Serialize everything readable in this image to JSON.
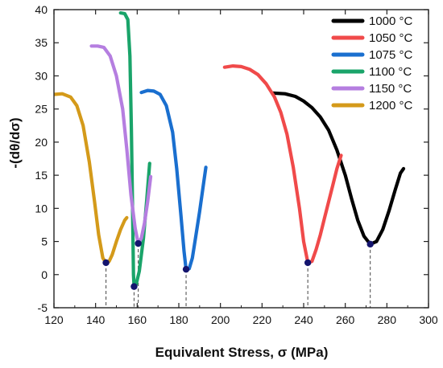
{
  "chart_data": {
    "type": "line",
    "xlabel": "Equivalent Stress, σ (MPa)",
    "ylabel": "-(dθ/dσ)",
    "xlim": [
      120,
      300
    ],
    "ylim": [
      -5,
      40
    ],
    "xticks": [
      120,
      140,
      160,
      180,
      200,
      220,
      240,
      260,
      280,
      300
    ],
    "yticks": [
      -5,
      0,
      5,
      10,
      15,
      20,
      25,
      30,
      35,
      40
    ],
    "legend_position": "top-right",
    "series": [
      {
        "name": "1000 °C",
        "color": "#000000",
        "points": [
          [
            225.5,
            27.4
          ],
          [
            231,
            27.3
          ],
          [
            236,
            26.9
          ],
          [
            240,
            26.2
          ],
          [
            244,
            25.2
          ],
          [
            248,
            23.8
          ],
          [
            252,
            21.8
          ],
          [
            256,
            18.8
          ],
          [
            260,
            15.0
          ],
          [
            263,
            11.5
          ],
          [
            266,
            8.2
          ],
          [
            269,
            5.8
          ],
          [
            272,
            4.6
          ],
          [
            275,
            5.0
          ],
          [
            278,
            6.8
          ],
          [
            281,
            9.6
          ],
          [
            284,
            12.8
          ],
          [
            286.5,
            15.3
          ],
          [
            288,
            16.0
          ]
        ],
        "minimum": {
          "x": 272,
          "y": 4.6
        }
      },
      {
        "name": "1050 °C",
        "color": "#f04a4a",
        "points": [
          [
            202,
            31.3
          ],
          [
            206,
            31.5
          ],
          [
            210,
            31.4
          ],
          [
            214,
            31.0
          ],
          [
            218,
            30.2
          ],
          [
            222,
            28.8
          ],
          [
            226,
            26.8
          ],
          [
            229,
            24.5
          ],
          [
            232,
            21.2
          ],
          [
            235,
            16.2
          ],
          [
            238,
            10.0
          ],
          [
            240,
            5.0
          ],
          [
            242,
            1.8
          ],
          [
            244,
            2.0
          ],
          [
            246,
            3.8
          ],
          [
            248,
            6.0
          ],
          [
            250,
            8.5
          ],
          [
            252,
            11.0
          ],
          [
            254,
            13.5
          ],
          [
            256,
            16.0
          ],
          [
            258,
            18.0
          ]
        ],
        "minimum": {
          "x": 242,
          "y": 1.8
        }
      },
      {
        "name": "1075 °C",
        "color": "#1a6fcf",
        "points": [
          [
            162,
            27.5
          ],
          [
            165,
            27.8
          ],
          [
            168,
            27.7
          ],
          [
            171,
            27.2
          ],
          [
            174,
            25.5
          ],
          [
            177,
            21.5
          ],
          [
            179,
            16.0
          ],
          [
            181,
            9.0
          ],
          [
            182.5,
            3.5
          ],
          [
            183.5,
            0.8
          ],
          [
            185,
            0.9
          ],
          [
            186.5,
            2.5
          ],
          [
            188,
            5.5
          ],
          [
            190,
            9.5
          ],
          [
            192,
            14.0
          ],
          [
            193,
            16.2
          ]
        ],
        "minimum": {
          "x": 183.5,
          "y": 0.8
        }
      },
      {
        "name": "1100 °C",
        "color": "#1aa46a",
        "points": [
          [
            152,
            39.5
          ],
          [
            154,
            39.4
          ],
          [
            155.5,
            38.5
          ],
          [
            156.5,
            33.0
          ],
          [
            157.2,
            22.0
          ],
          [
            157.8,
            9.0
          ],
          [
            158.2,
            0.0
          ],
          [
            158.5,
            -1.8
          ],
          [
            159.5,
            -1.5
          ],
          [
            161,
            0.5
          ],
          [
            163,
            5.5
          ],
          [
            164.5,
            11.0
          ],
          [
            166,
            16.8
          ]
        ],
        "minimum": {
          "x": 158.5,
          "y": -1.8
        }
      },
      {
        "name": "1150 °C",
        "color": "#b57ee0",
        "points": [
          [
            138,
            34.5
          ],
          [
            141,
            34.5
          ],
          [
            144,
            34.3
          ],
          [
            147,
            33.0
          ],
          [
            150,
            30.0
          ],
          [
            153,
            25.0
          ],
          [
            155,
            19.0
          ],
          [
            157,
            12.0
          ],
          [
            159,
            7.0
          ],
          [
            160.5,
            4.7
          ],
          [
            162,
            5.5
          ],
          [
            163.5,
            7.8
          ],
          [
            165,
            11.0
          ],
          [
            166.5,
            14.8
          ]
        ],
        "minimum": {
          "x": 160.5,
          "y": 4.7
        }
      },
      {
        "name": "1200 °C",
        "color": "#d49a1a",
        "points": [
          [
            120,
            27.2
          ],
          [
            124,
            27.3
          ],
          [
            128,
            26.8
          ],
          [
            131,
            25.5
          ],
          [
            134,
            22.5
          ],
          [
            137,
            17.0
          ],
          [
            139.5,
            11.0
          ],
          [
            141.5,
            6.0
          ],
          [
            143.5,
            2.5
          ],
          [
            145,
            1.8
          ],
          [
            146.5,
            2.0
          ],
          [
            148,
            3.0
          ],
          [
            150,
            5.0
          ],
          [
            152,
            6.8
          ],
          [
            154,
            8.2
          ],
          [
            155,
            8.6
          ]
        ],
        "minimum": {
          "x": 145,
          "y": 1.8
        }
      }
    ]
  }
}
